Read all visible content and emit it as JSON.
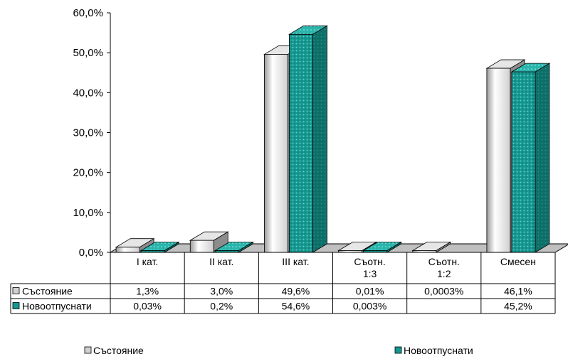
{
  "chart_data": {
    "type": "bar",
    "categories": [
      [
        "I кат."
      ],
      [
        "II кат."
      ],
      [
        "III кат."
      ],
      [
        "Съотн.",
        "1:3"
      ],
      [
        "Съотн.",
        "1:2"
      ],
      [
        "Смесен"
      ]
    ],
    "series": [
      {
        "name": "Състояние",
        "values": [
          1.3,
          3.0,
          49.6,
          0.01,
          0.0003,
          46.1
        ],
        "labels": [
          "1,3%",
          "3,0%",
          "49,6%",
          "0,01%",
          "0,0003%",
          "46,1%"
        ],
        "color": "#d9d9d9"
      },
      {
        "name": "Новоотпуснати",
        "values": [
          0.03,
          0.2,
          54.6,
          0.003,
          null,
          45.2
        ],
        "labels": [
          "0,03%",
          "0,2%",
          "54,6%",
          "0,003%",
          "",
          "45,2%"
        ],
        "color": "#1a9e96"
      }
    ],
    "y_ticks": [
      "0,0%",
      "10,0%",
      "20,0%",
      "30,0%",
      "40,0%",
      "50,0%",
      "60,0%"
    ],
    "ylim": [
      0,
      60
    ],
    "grid": false,
    "legend_position": "bottom",
    "data_table": true
  }
}
